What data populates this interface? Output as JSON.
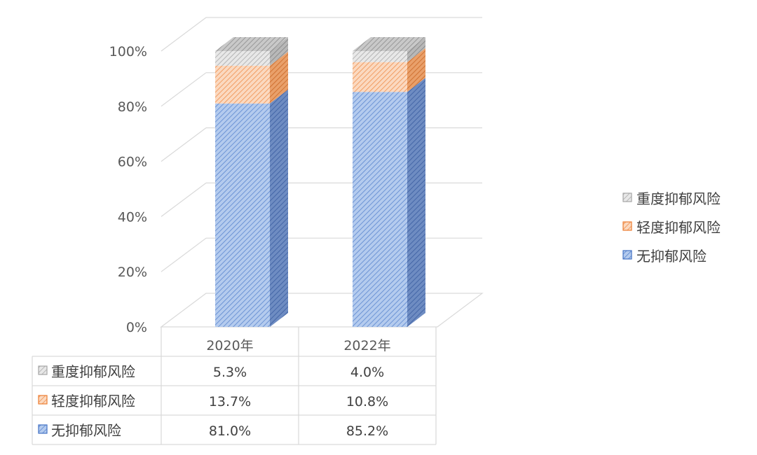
{
  "chart_data": {
    "type": "bar",
    "stacked": true,
    "three_d": true,
    "categories": [
      "2020年",
      "2022年"
    ],
    "series": [
      {
        "name": "无抑郁风险",
        "values": [
          81.0,
          85.2
        ],
        "color": "#4472c4",
        "fill": "#a9c4ea"
      },
      {
        "name": "轻度抑郁风险",
        "values": [
          13.7,
          10.8
        ],
        "color": "#ed7d31",
        "fill": "#f8cbad"
      },
      {
        "name": "重度抑郁风险",
        "values": [
          5.3,
          4.0
        ],
        "color": "#a5a5a5",
        "fill": "#dcdcdc"
      }
    ],
    "y_ticks": [
      "0%",
      "20%",
      "40%",
      "60%",
      "80%",
      "100%"
    ],
    "ylim": [
      0,
      100
    ],
    "grid": true,
    "legend_position": "right",
    "legend_order": [
      "重度抑郁风险",
      "轻度抑郁风险",
      "无抑郁风险"
    ],
    "data_table": {
      "rows": [
        {
          "series": "重度抑郁风险",
          "cells": [
            "5.3%",
            "4.0%"
          ]
        },
        {
          "series": "轻度抑郁风险",
          "cells": [
            "13.7%",
            "10.8%"
          ]
        },
        {
          "series": "无抑郁风险",
          "cells": [
            "81.0%",
            "85.2%"
          ]
        }
      ]
    }
  }
}
